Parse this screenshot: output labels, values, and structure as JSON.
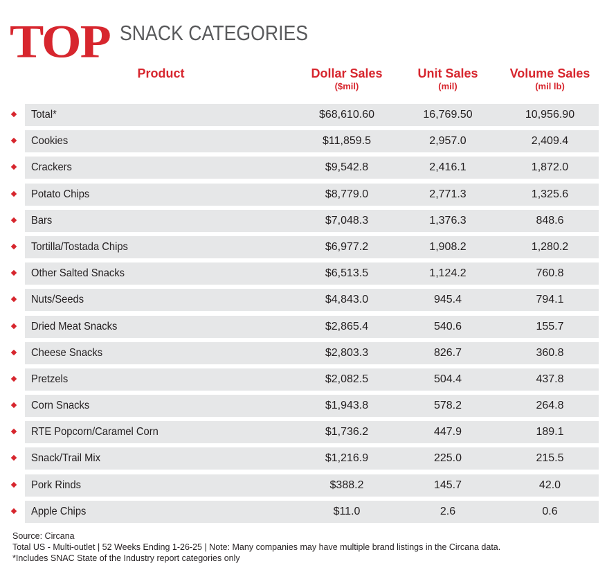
{
  "title": {
    "top": "TOP",
    "subtitle": "SNACK CATEGORIES"
  },
  "header": {
    "product": "Product",
    "dollar_main": "Dollar Sales",
    "dollar_sub": "($mil)",
    "unit_main": "Unit Sales",
    "unit_sub": "(mil)",
    "volume_main": "Volume Sales",
    "volume_sub": "(mil lb)"
  },
  "rows": [
    {
      "product": "Total*",
      "dollar": "$68,610.60",
      "unit": "16,769.50",
      "volume": "10,956.90"
    },
    {
      "product": "Cookies",
      "dollar": "$11,859.5",
      "unit": "2,957.0",
      "volume": "2,409.4"
    },
    {
      "product": "Crackers",
      "dollar": "$9,542.8",
      "unit": "2,416.1",
      "volume": "1,872.0"
    },
    {
      "product": "Potato Chips",
      "dollar": "$8,779.0",
      "unit": "2,771.3",
      "volume": "1,325.6"
    },
    {
      "product": "Bars",
      "dollar": "$7,048.3",
      "unit": "1,376.3",
      "volume": "848.6"
    },
    {
      "product": "Tortilla/Tostada Chips",
      "dollar": "$6,977.2",
      "unit": "1,908.2",
      "volume": "1,280.2"
    },
    {
      "product": "Other Salted Snacks",
      "dollar": "$6,513.5",
      "unit": "1,124.2",
      "volume": "760.8"
    },
    {
      "product": "Nuts/Seeds",
      "dollar": "$4,843.0",
      "unit": "945.4",
      "volume": "794.1"
    },
    {
      "product": "Dried Meat Snacks",
      "dollar": "$2,865.4",
      "unit": "540.6",
      "volume": "155.7"
    },
    {
      "product": "Cheese Snacks",
      "dollar": "$2,803.3",
      "unit": "826.7",
      "volume": "360.8"
    },
    {
      "product": "Pretzels",
      "dollar": "$2,082.5",
      "unit": "504.4",
      "volume": "437.8"
    },
    {
      "product": "Corn Snacks",
      "dollar": "$1,943.8",
      "unit": "578.2",
      "volume": "264.8"
    },
    {
      "product": "RTE Popcorn/Caramel Corn",
      "dollar": "$1,736.2",
      "unit": "447.9",
      "volume": "189.1"
    },
    {
      "product": "Snack/Trail Mix",
      "dollar": "$1,216.9",
      "unit": "225.0",
      "volume": "215.5"
    },
    {
      "product": "Pork Rinds",
      "dollar": "$388.2",
      "unit": "145.7",
      "volume": "42.0"
    },
    {
      "product": "Apple Chips",
      "dollar": "$11.0",
      "unit": "2.6",
      "volume": "0.6"
    }
  ],
  "footer": {
    "source": "Source: Circana",
    "note": "Total US - Multi-outlet | 52 Weeks Ending 1-26-25 | Note: Many companies may have multiple brand listings in the Circana data.",
    "footnote": "*Includes SNAC State of the Industry report categories only"
  },
  "colors": {
    "accent": "#d7262e",
    "bar": "#e6e7e8",
    "text": "#231f20",
    "subtitle": "#58595b"
  }
}
